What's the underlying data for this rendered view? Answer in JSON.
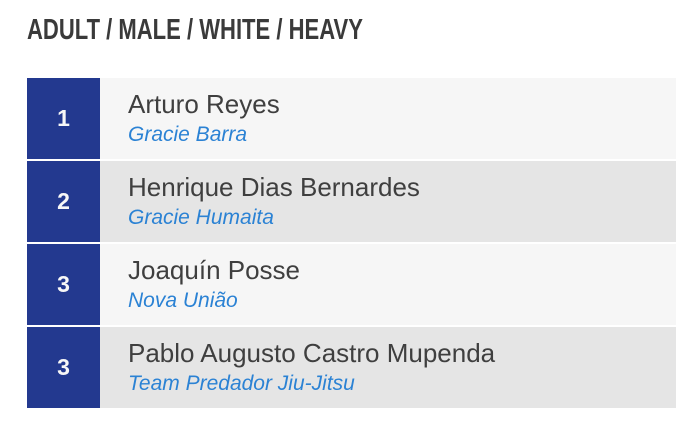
{
  "header": {
    "title": "ADULT / MALE / WHITE / HEAVY"
  },
  "results": [
    {
      "rank": "1",
      "name": "Arturo Reyes",
      "team": "Gracie Barra"
    },
    {
      "rank": "2",
      "name": "Henrique Dias Bernardes",
      "team": "Gracie Humaita"
    },
    {
      "rank": "3",
      "name": "Joaquín Posse",
      "team": "Nova União"
    },
    {
      "rank": "3",
      "name": "Pablo Augusto Castro Mupenda",
      "team": "Team Predador Jiu-Jitsu"
    }
  ],
  "colors": {
    "rank_badge_bg": "#23398f",
    "rank_badge_text": "#f7f7f7",
    "team_link": "#2b82d4",
    "athlete_name": "#3f3f3f",
    "title_text": "#3a3a3a",
    "row_light_bg": "#f6f6f6",
    "row_dark_bg": "#e5e5e5"
  }
}
